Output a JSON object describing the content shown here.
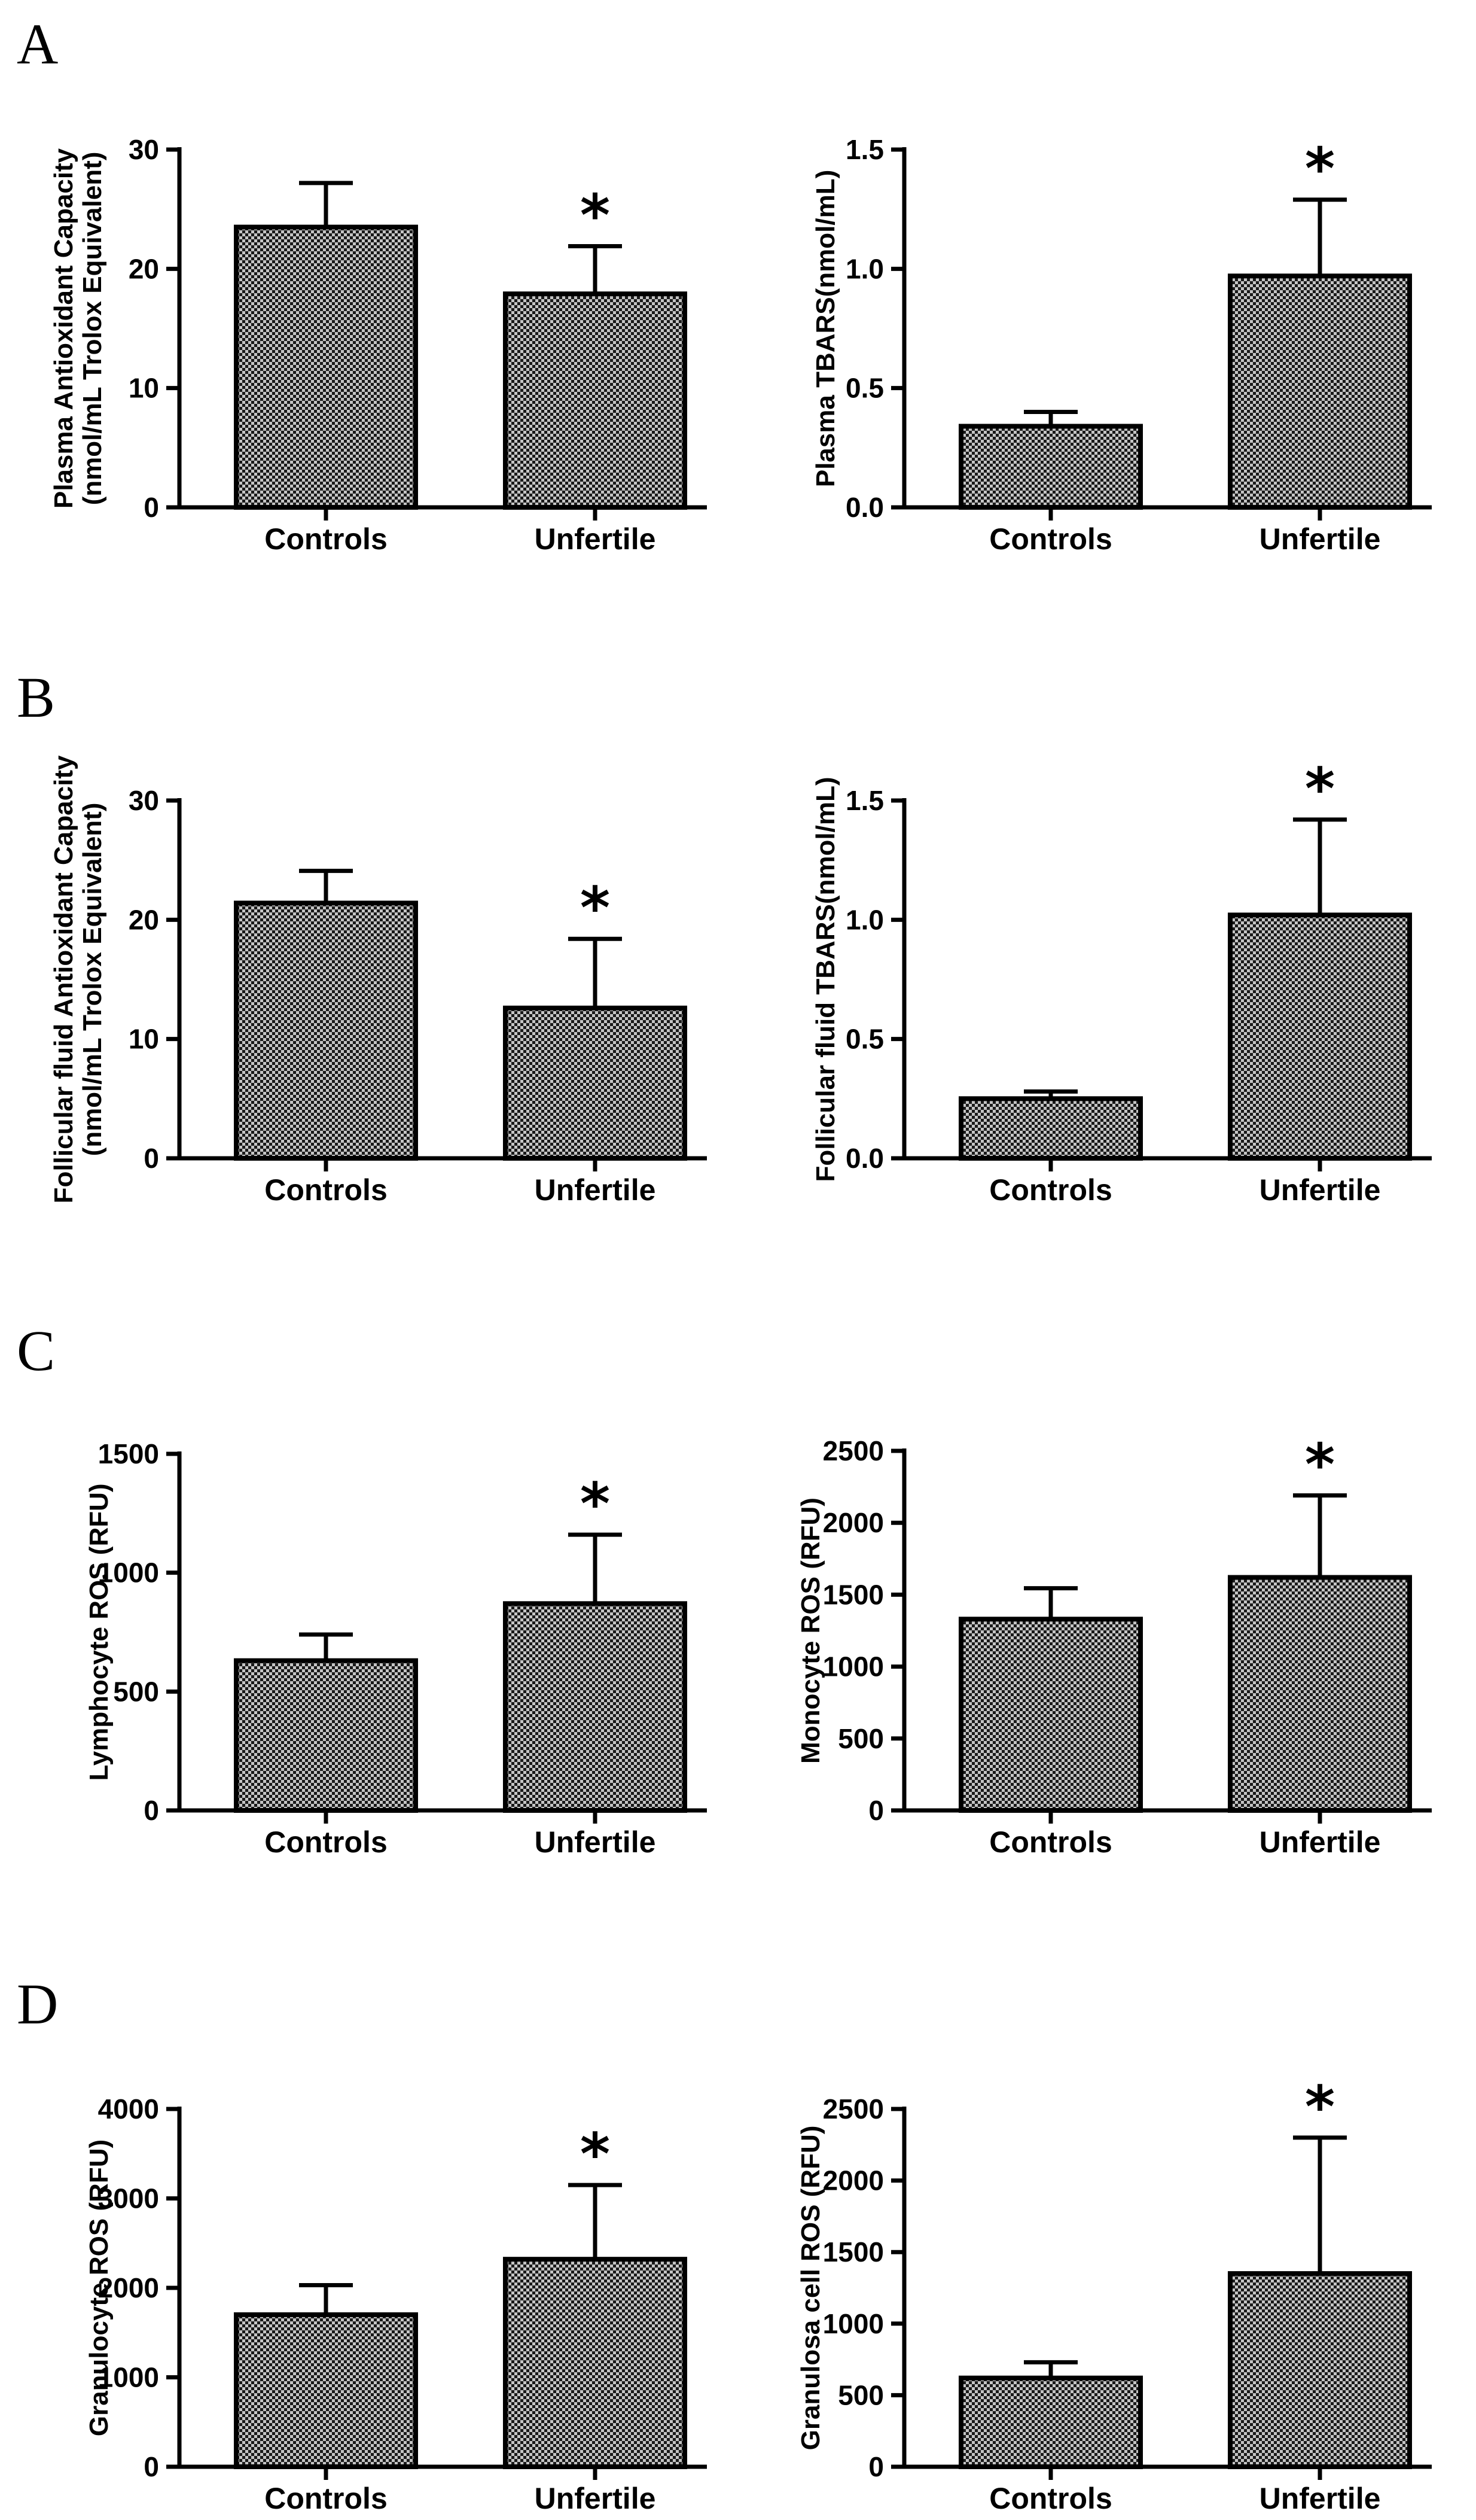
{
  "panel_labels": [
    "A",
    "B",
    "C",
    "D"
  ],
  "colors": {
    "bar_fill": "#9a9a9a",
    "bar_stroke": "#000000",
    "background": "#ffffff"
  },
  "chart_data": [
    {
      "type": "bar",
      "panel": "A",
      "ylabel": [
        "Plasma Antioxidant Capacity",
        "(nmol/mL Trolox Equivalent)"
      ],
      "categories": [
        "Controls",
        "Unfertile"
      ],
      "values": [
        23.5,
        17.9
      ],
      "errors": [
        3.7,
        4.0
      ],
      "ylim": [
        0,
        30
      ],
      "yticks": [
        0,
        10,
        20,
        30
      ],
      "tick_labels": [
        "0",
        "10",
        "20",
        "30"
      ],
      "significance": [
        "",
        "*"
      ]
    },
    {
      "type": "bar",
      "panel": "A",
      "ylabel": [
        "Plasma TBARS(nmol/mL)"
      ],
      "categories": [
        "Controls",
        "Unfertile"
      ],
      "values": [
        0.34,
        0.97
      ],
      "errors": [
        0.06,
        0.32
      ],
      "ylim": [
        0,
        1.5
      ],
      "yticks": [
        0,
        0.5,
        1.0,
        1.5
      ],
      "tick_labels": [
        "0.0",
        "0.5",
        "1.0",
        "1.5"
      ],
      "significance": [
        "",
        "*"
      ]
    },
    {
      "type": "bar",
      "panel": "B",
      "ylabel": [
        "Follicular fluid Antioxidant Capacity",
        "(nmol/mL Trolox Equivalent)"
      ],
      "categories": [
        "Controls",
        "Unfertile"
      ],
      "values": [
        21.4,
        12.6
      ],
      "errors": [
        2.7,
        5.8
      ],
      "ylim": [
        0,
        30
      ],
      "yticks": [
        0,
        10,
        20,
        30
      ],
      "tick_labels": [
        "0",
        "10",
        "20",
        "30"
      ],
      "significance": [
        "",
        "*"
      ]
    },
    {
      "type": "bar",
      "panel": "B",
      "ylabel": [
        "Follicular fluid TBARS(nmol/mL)"
      ],
      "categories": [
        "Controls",
        "Unfertile"
      ],
      "values": [
        0.25,
        1.02
      ],
      "errors": [
        0.03,
        0.4
      ],
      "ylim": [
        0,
        1.5
      ],
      "yticks": [
        0,
        0.5,
        1.0,
        1.5
      ],
      "tick_labels": [
        "0.0",
        "0.5",
        "1.0",
        "1.5"
      ],
      "significance": [
        "",
        "*"
      ]
    },
    {
      "type": "bar",
      "panel": "C",
      "ylabel": [
        "Lymphocyte ROS (RFU)"
      ],
      "categories": [
        "Controls",
        "Unfertile"
      ],
      "values": [
        630,
        870
      ],
      "errors": [
        110,
        290
      ],
      "ylim": [
        0,
        1500
      ],
      "yticks": [
        0,
        500,
        1000,
        1500
      ],
      "tick_labels": [
        "0",
        "500",
        "1000",
        "1500"
      ],
      "significance": [
        "",
        "*"
      ]
    },
    {
      "type": "bar",
      "panel": "C",
      "ylabel": [
        "Monocyte ROS (RFU)"
      ],
      "categories": [
        "Controls",
        "Unfertile"
      ],
      "values": [
        1330,
        1620
      ],
      "errors": [
        215,
        570
      ],
      "ylim": [
        0,
        2500
      ],
      "yticks": [
        0,
        500,
        1000,
        1500,
        2000,
        2500
      ],
      "tick_labels": [
        "0",
        "500",
        "1000",
        "1500",
        "2000",
        "2500"
      ],
      "significance": [
        "",
        "*"
      ]
    },
    {
      "type": "bar",
      "panel": "D",
      "ylabel": [
        "Granulocyte ROS (RFU)"
      ],
      "categories": [
        "Controls",
        "Unfertile"
      ],
      "values": [
        1700,
        2320
      ],
      "errors": [
        330,
        830
      ],
      "ylim": [
        0,
        4000
      ],
      "yticks": [
        0,
        1000,
        2000,
        3000,
        4000
      ],
      "tick_labels": [
        "0",
        "1000",
        "2000",
        "3000",
        "4000"
      ],
      "significance": [
        "",
        "*"
      ]
    },
    {
      "type": "bar",
      "panel": "D",
      "ylabel": [
        "Granulosa cell ROS (RFU)"
      ],
      "categories": [
        "Controls",
        "Unfertile"
      ],
      "values": [
        620,
        1350
      ],
      "errors": [
        110,
        950
      ],
      "ylim": [
        0,
        2500
      ],
      "yticks": [
        0,
        500,
        1000,
        1500,
        2000,
        2500
      ],
      "tick_labels": [
        "0",
        "500",
        "1000",
        "1500",
        "2000",
        "2500"
      ],
      "significance": [
        "",
        "*"
      ]
    }
  ]
}
